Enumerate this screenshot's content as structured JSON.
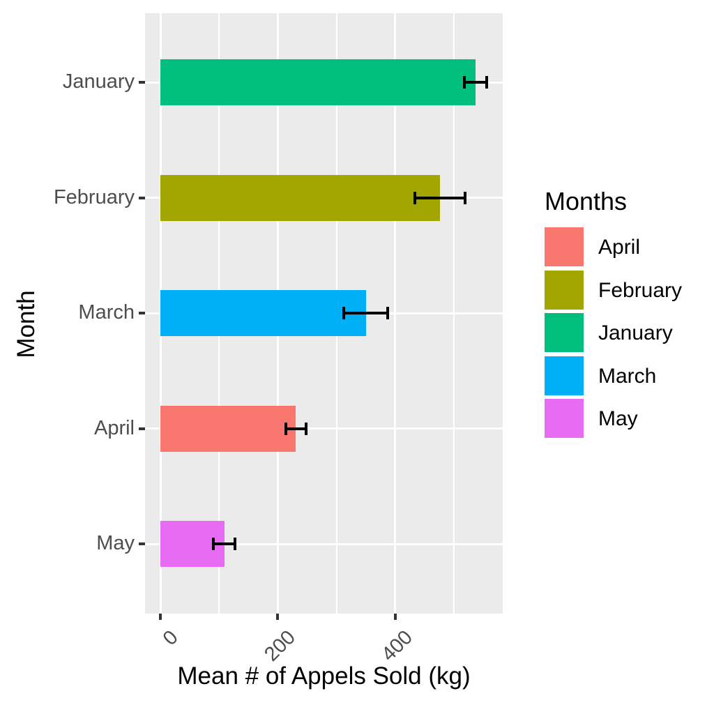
{
  "chart_data": {
    "type": "bar",
    "orientation": "horizontal",
    "title": "",
    "xlabel": "Mean # of Appels Sold (kg)",
    "ylabel": "Month",
    "categories": [
      "January",
      "February",
      "March",
      "April",
      "May"
    ],
    "values": [
      537,
      476,
      350,
      231,
      109
    ],
    "errors": [
      21,
      45,
      40,
      20,
      21
    ],
    "bar_colors": [
      "#00BF7D",
      "#A3A500",
      "#00B0F6",
      "#F8766D",
      "#E76BF3"
    ],
    "x_ticks": [
      0,
      200,
      400
    ],
    "x_minor_gridlines": [
      100,
      300,
      500
    ],
    "xlim": [
      -27,
      583
    ],
    "grid": true,
    "legend": {
      "title": "Months",
      "position": "right",
      "entries": [
        {
          "label": "April",
          "color": "#F8766D"
        },
        {
          "label": "February",
          "color": "#A3A500"
        },
        {
          "label": "January",
          "color": "#00BF7D"
        },
        {
          "label": "March",
          "color": "#00B0F6"
        },
        {
          "label": "May",
          "color": "#E76BF3"
        }
      ]
    },
    "colors": {
      "panel_bg": "#EBEBEB",
      "grid": "#FFFFFF",
      "axis_text": "#4D4D4D",
      "tick_mark": "#333333",
      "title_text": "#000000",
      "error_bar": "#000000"
    }
  }
}
